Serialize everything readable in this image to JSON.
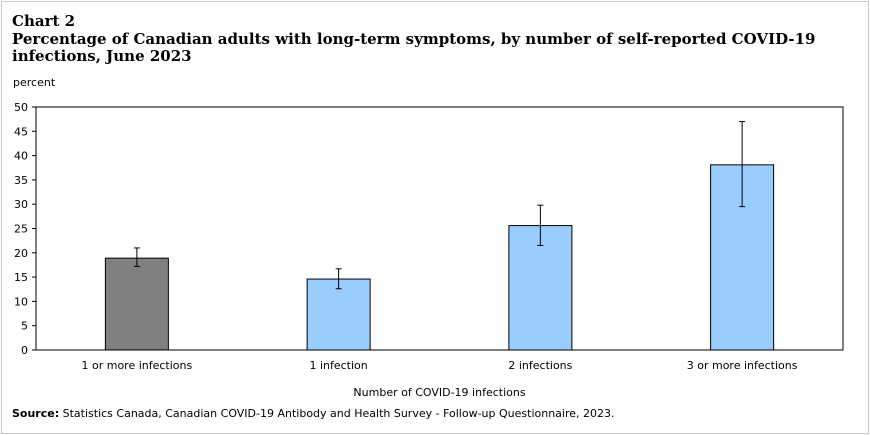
{
  "header": {
    "chart_number": "Chart 2",
    "title": "Percentage of Canadian adults with long-term symptoms, by number of self-reported COVID-19 infections, June 2023"
  },
  "footer": {
    "source_label": "Source:",
    "source_text": " Statistics Canada, Canadian COVID-19 Antibody and Health Survey - Follow-up Questionnaire, 2023."
  },
  "colors": {
    "highlight_bar": "#808080",
    "bar": "#99CCFF",
    "outline": "#000000"
  },
  "chart_data": {
    "type": "bar",
    "categories": [
      "1 or more infections",
      "1 infection",
      "2 infections",
      "3 or more infections"
    ],
    "values": [
      18.9,
      14.6,
      25.6,
      38.1
    ],
    "error_low": [
      17.2,
      12.6,
      21.5,
      29.5
    ],
    "error_high": [
      21.0,
      16.7,
      29.8,
      47.0
    ],
    "ylabel": "percent",
    "xlabel": "Number of COVID-19 infections",
    "ylim": [
      0,
      50
    ],
    "yticks": [
      0,
      5,
      10,
      15,
      20,
      25,
      30,
      35,
      40,
      45,
      50
    ],
    "grid": false,
    "legend": "none"
  }
}
